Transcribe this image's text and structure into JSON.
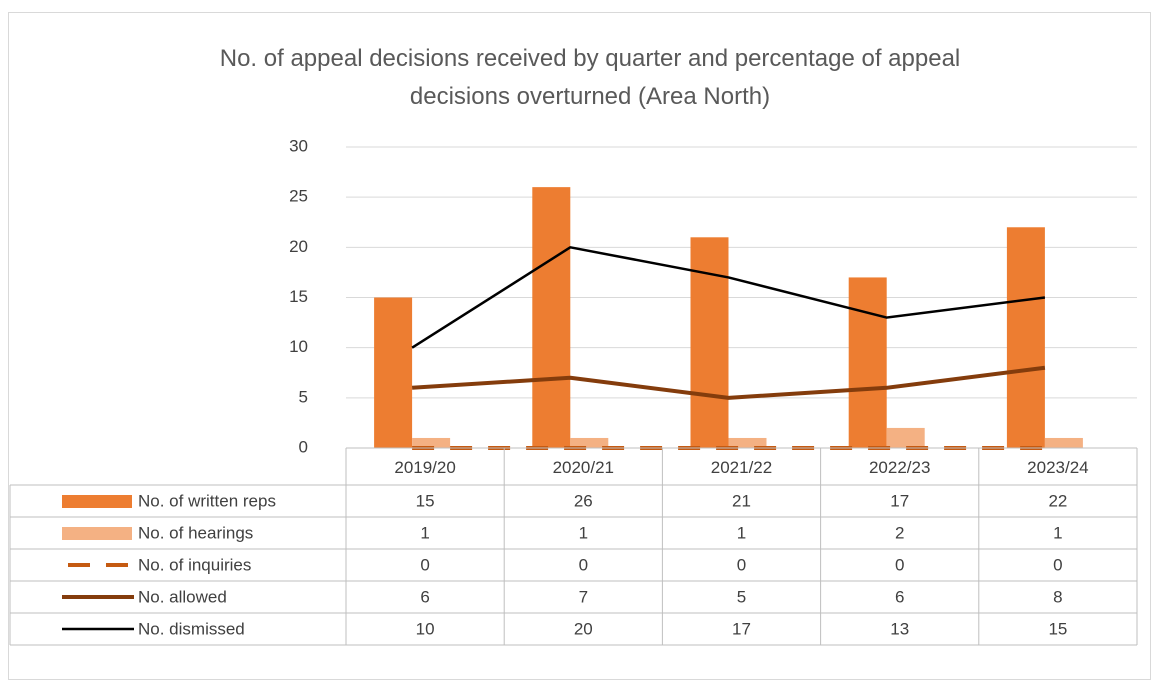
{
  "chart_data": {
    "type": "bar",
    "title": "No. of appeal decisions received by quarter and percentage of appeal decisions overturned (Area North)",
    "categories": [
      "2019/20",
      "2020/21",
      "2021/22",
      "2022/23",
      "2023/24"
    ],
    "series": [
      {
        "name": "No. of written reps",
        "type": "bar",
        "color": "#ED7D31",
        "values": [
          15,
          26,
          21,
          17,
          22
        ]
      },
      {
        "name": "No. of hearings",
        "type": "bar",
        "color": "#F4B183",
        "values": [
          1,
          1,
          1,
          2,
          1
        ]
      },
      {
        "name": "No. of inquiries",
        "type": "line",
        "dash": true,
        "color": "#C55A11",
        "values": [
          0,
          0,
          0,
          0,
          0
        ]
      },
      {
        "name": "No. allowed",
        "type": "line",
        "color": "#843C0C",
        "values": [
          6,
          7,
          5,
          6,
          8
        ]
      },
      {
        "name": "No. dismissed",
        "type": "line",
        "color": "#000000",
        "values": [
          10,
          20,
          17,
          13,
          15
        ]
      }
    ],
    "ylim": [
      0,
      30
    ],
    "yticks": [
      0,
      5,
      10,
      15,
      20,
      25,
      30
    ],
    "grid": true,
    "legend": "table"
  }
}
